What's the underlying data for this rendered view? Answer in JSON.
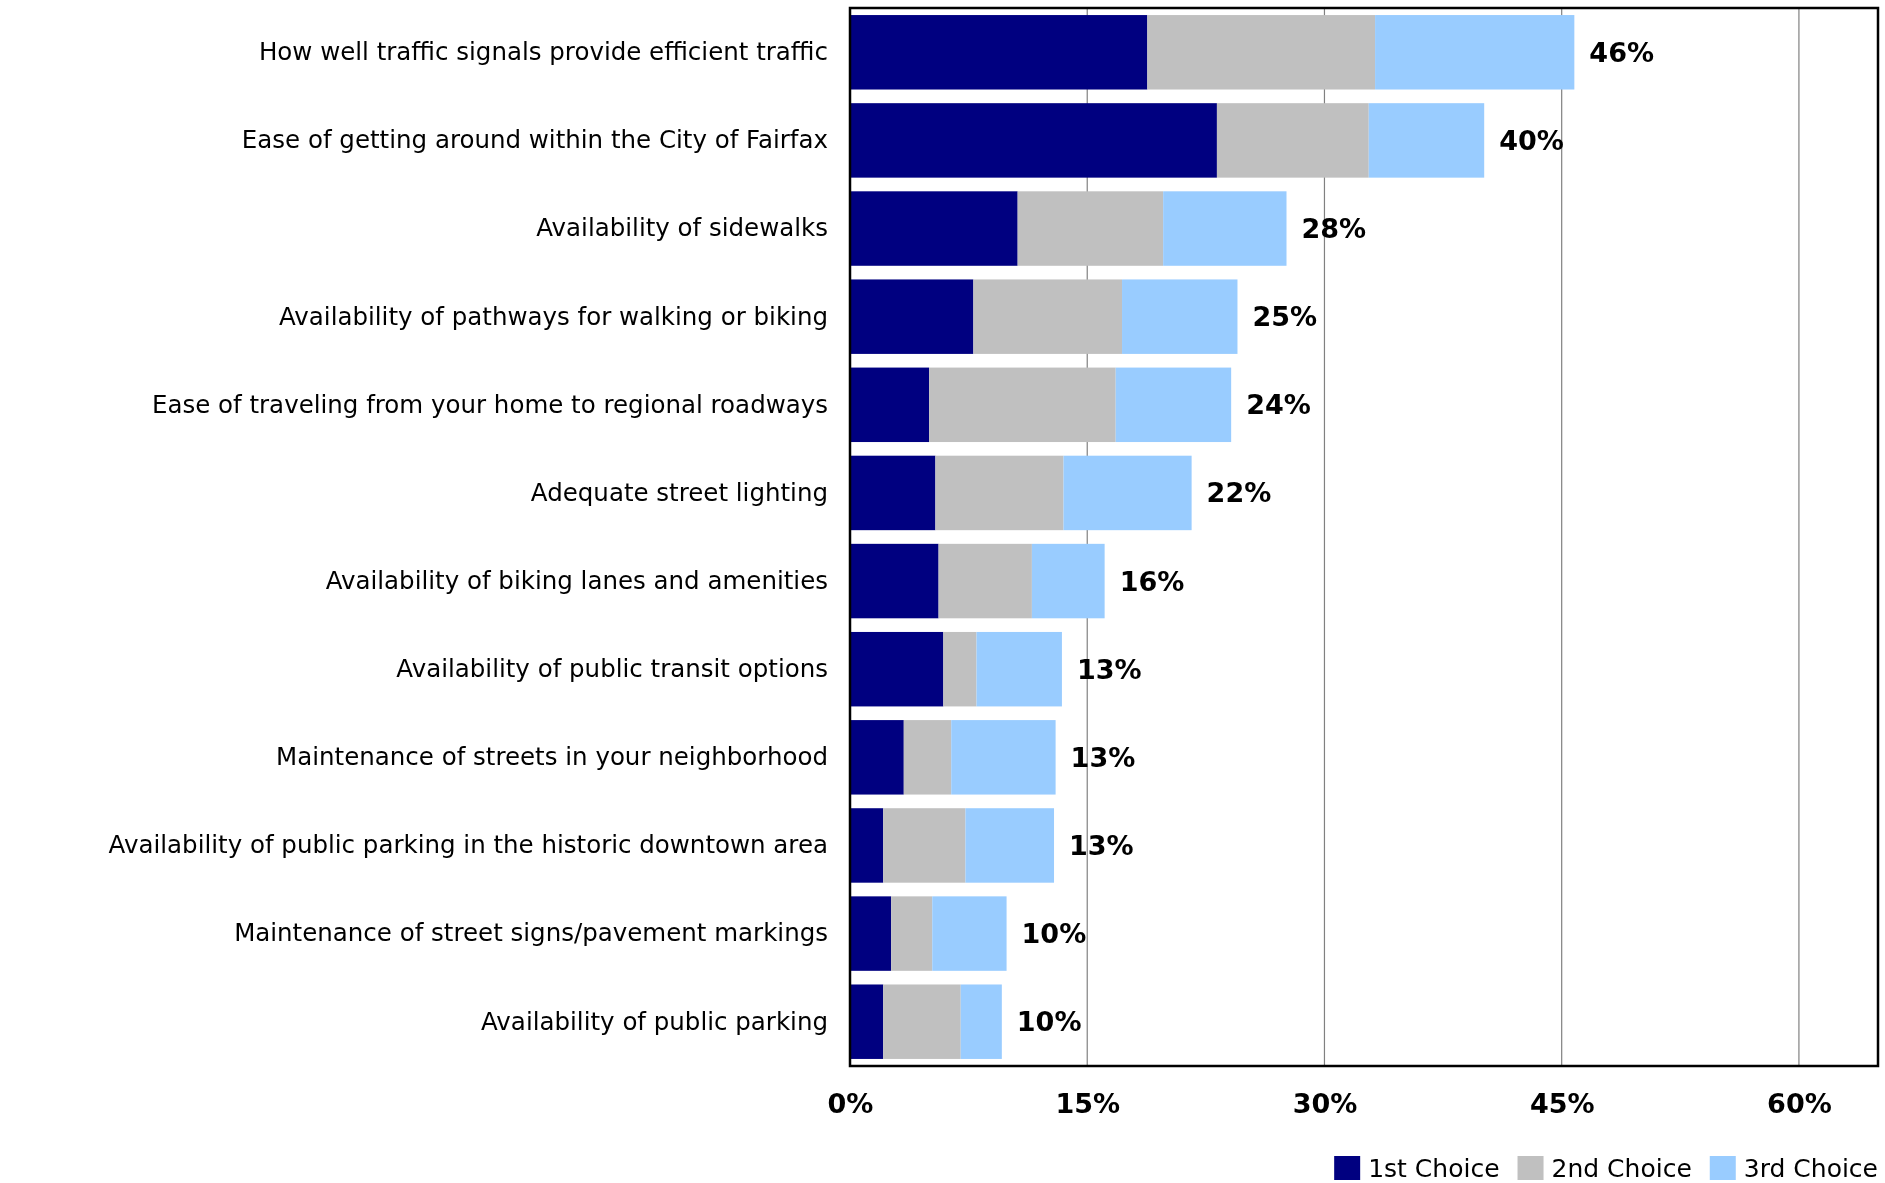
{
  "chart_data": {
    "type": "bar",
    "orientation": "horizontal",
    "stacked": true,
    "categories": [
      "How well traffic signals provide efficient traffic",
      "Ease of getting around within the City of Fairfax",
      "Availability of sidewalks",
      "Availability of pathways for walking or biking",
      "Ease of traveling from your home to regional roadways",
      "Adequate street lighting",
      "Availability of biking lanes and amenities",
      "Availability of public transit options",
      "Maintenance of streets in your neighborhood",
      "Availability of public parking in the historic downtown area",
      "Maintenance of street signs/pavement markings",
      "Availability of public parking"
    ],
    "series": [
      {
        "name": "1st Choice",
        "color": "#000080",
        "values": [
          18.8,
          23.2,
          10.6,
          7.8,
          5.0,
          5.4,
          5.6,
          5.9,
          3.4,
          2.1,
          2.6,
          2.1
        ]
      },
      {
        "name": "2nd Choice",
        "color": "#c0c0c0",
        "values": [
          14.4,
          9.6,
          9.2,
          9.4,
          11.8,
          8.1,
          5.9,
          2.1,
          3.0,
          5.2,
          2.6,
          4.9
        ]
      },
      {
        "name": "3rd Choice",
        "color": "#99ccff",
        "values": [
          12.6,
          7.3,
          7.8,
          7.3,
          7.3,
          8.1,
          4.6,
          5.4,
          6.6,
          5.6,
          4.7,
          2.6
        ]
      }
    ],
    "totals": [
      "46%",
      "40%",
      "28%",
      "25%",
      "24%",
      "22%",
      "16%",
      "13%",
      "13%",
      "13%",
      "10%",
      "10%"
    ],
    "xlim": [
      0,
      65
    ],
    "xticks": [
      {
        "value": 0,
        "label": "0%"
      },
      {
        "value": 15,
        "label": "15%"
      },
      {
        "value": 30,
        "label": "30%"
      },
      {
        "value": 45,
        "label": "45%"
      },
      {
        "value": 60,
        "label": "60%"
      }
    ],
    "grid": "x",
    "legend": "bottom right"
  }
}
